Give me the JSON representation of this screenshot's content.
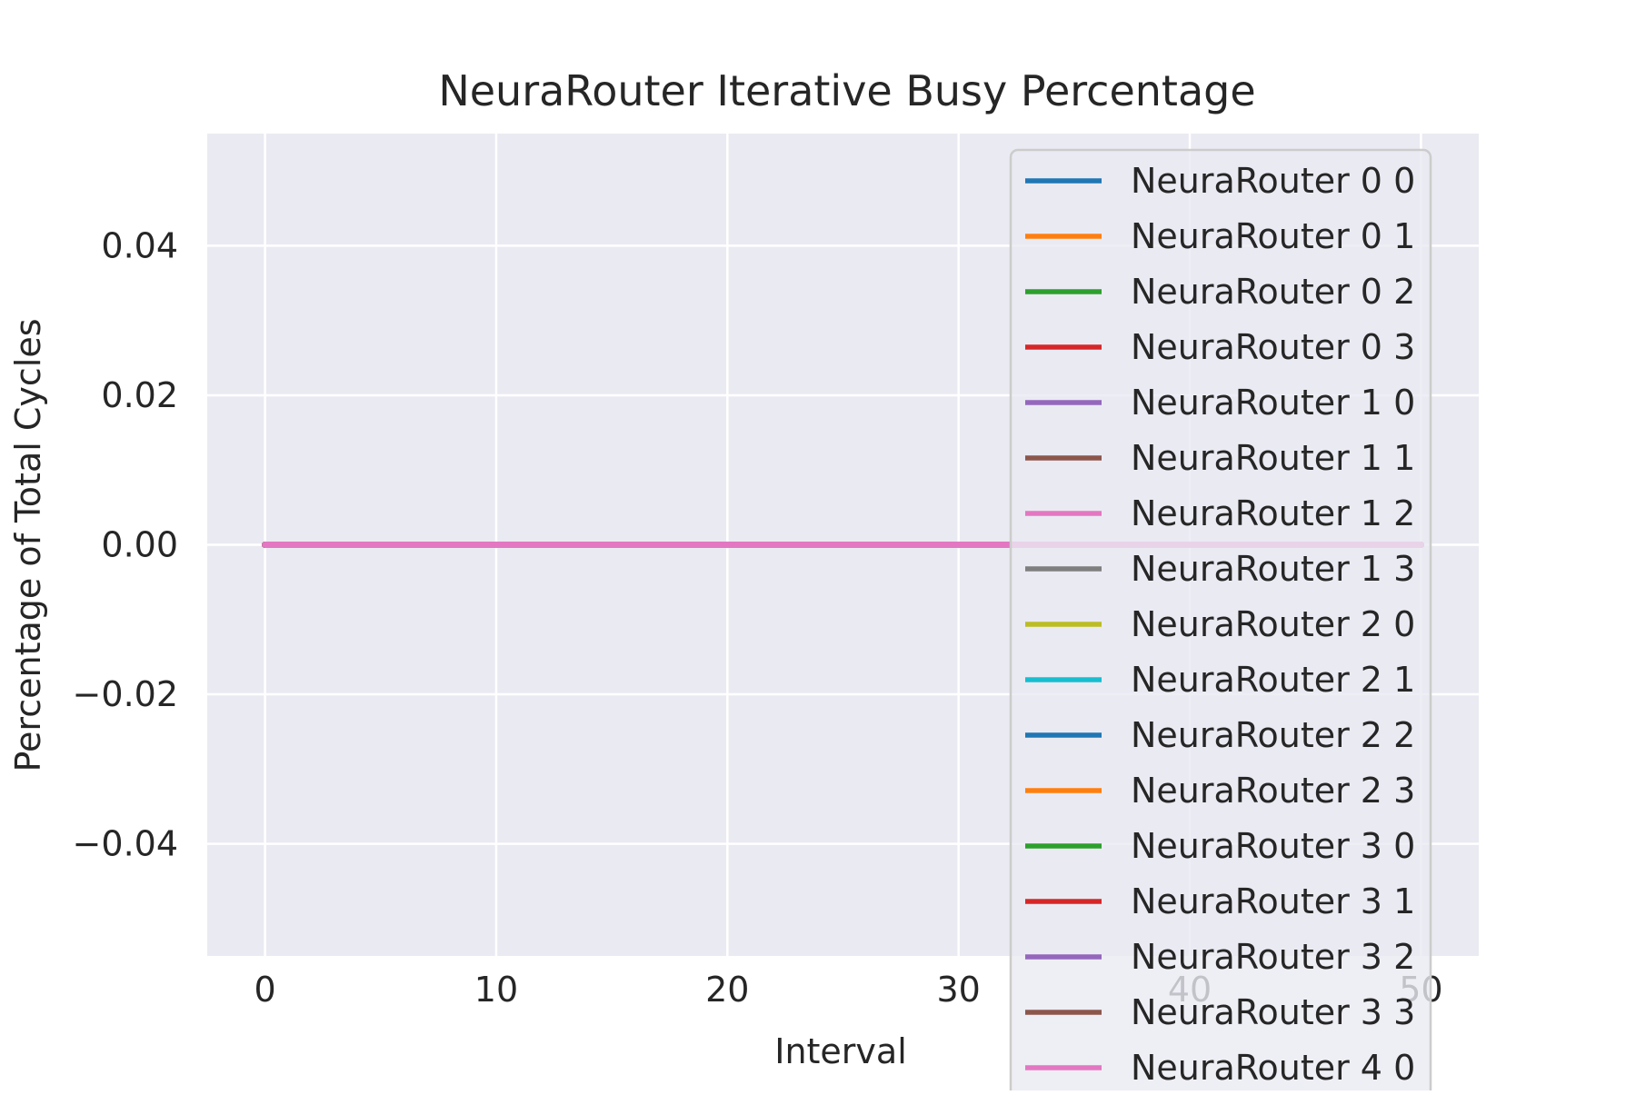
{
  "chart_data": {
    "type": "line",
    "title": "NeuraRouter Iterative Busy Percentage",
    "xlabel": "Interval",
    "ylabel": "Percentage of Total Cycles",
    "xlim": [
      -2.5,
      52.5
    ],
    "ylim": [
      -0.055,
      0.055
    ],
    "xticks": [
      0,
      10,
      20,
      30,
      40,
      50
    ],
    "xtick_labels": [
      "0",
      "10",
      "20",
      "30",
      "40",
      "50"
    ],
    "yticks": [
      -0.04,
      -0.02,
      0.0,
      0.02,
      0.04
    ],
    "ytick_labels": [
      "−0.04",
      "−0.02",
      "0.00",
      "0.02",
      "0.04"
    ],
    "grid": true,
    "legend_position": "upper-right",
    "x_range": [
      0,
      50
    ],
    "series": [
      {
        "name": "NeuraRouter 0 0",
        "color": "#1f77b4",
        "y": 0
      },
      {
        "name": "NeuraRouter 0 1",
        "color": "#ff7f0e",
        "y": 0
      },
      {
        "name": "NeuraRouter 0 2",
        "color": "#2ca02c",
        "y": 0
      },
      {
        "name": "NeuraRouter 0 3",
        "color": "#d62728",
        "y": 0
      },
      {
        "name": "NeuraRouter 1 0",
        "color": "#9467bd",
        "y": 0
      },
      {
        "name": "NeuraRouter 1 1",
        "color": "#8c564b",
        "y": 0
      },
      {
        "name": "NeuraRouter 1 2",
        "color": "#e377c2",
        "y": 0
      },
      {
        "name": "NeuraRouter 1 3",
        "color": "#7f7f7f",
        "y": 0
      },
      {
        "name": "NeuraRouter 2 0",
        "color": "#bcbd22",
        "y": 0
      },
      {
        "name": "NeuraRouter 2 1",
        "color": "#17becf",
        "y": 0
      },
      {
        "name": "NeuraRouter 2 2",
        "color": "#1f77b4",
        "y": 0
      },
      {
        "name": "NeuraRouter 2 3",
        "color": "#ff7f0e",
        "y": 0
      },
      {
        "name": "NeuraRouter 3 0",
        "color": "#2ca02c",
        "y": 0
      },
      {
        "name": "NeuraRouter 3 1",
        "color": "#d62728",
        "y": 0
      },
      {
        "name": "NeuraRouter 3 2",
        "color": "#9467bd",
        "y": 0
      },
      {
        "name": "NeuraRouter 3 3",
        "color": "#8c564b",
        "y": 0
      },
      {
        "name": "NeuraRouter 4 0",
        "color": "#e377c2",
        "y": 0
      }
    ]
  }
}
